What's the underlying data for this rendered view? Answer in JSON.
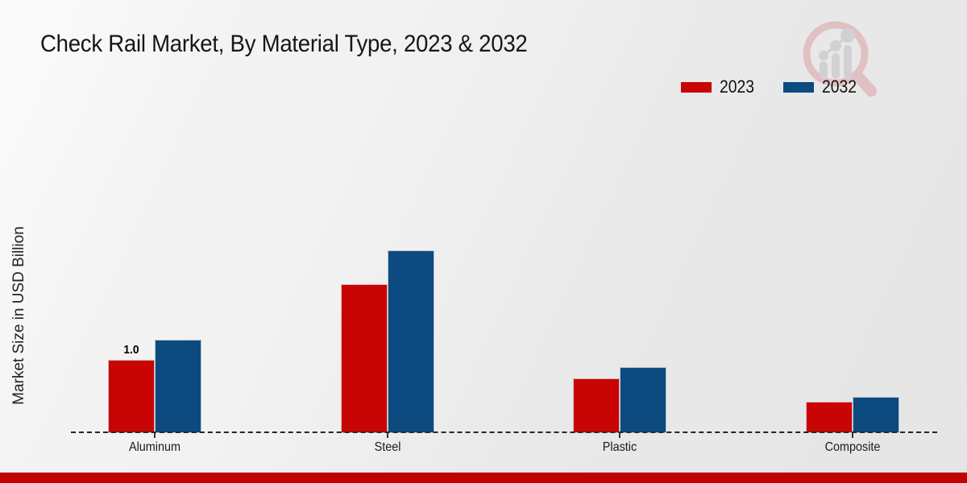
{
  "header": {
    "title": "Check Rail Market, By Material Type, 2023 & 2032"
  },
  "watermark_icon": "magnifier-bar-chart-logo",
  "styles": {
    "background": "#ebebeb",
    "accent_bar_color": "#c00202",
    "bar_2023_color": "#c80404",
    "bar_2032_color": "#0c4a80",
    "baseline_color": "#262626",
    "logo_ring_color": "#dda6ab",
    "logo_bars_color": "#c2c2c2"
  },
  "chart_data": {
    "type": "bar",
    "title": "Check Rail Market, By Material Type, 2023 & 2032",
    "ylabel": "Market Size in USD Billion",
    "xlabel": "",
    "units": "USD Billion",
    "categories": [
      "Aluminum",
      "Steel",
      "Plastic",
      "Composite"
    ],
    "series": [
      {
        "name": "2023",
        "color": "#c80404",
        "values": [
          1.0,
          2.03,
          0.75,
          0.43
        ]
      },
      {
        "name": "2032",
        "color": "#0c4a80",
        "values": [
          1.27,
          2.49,
          0.9,
          0.49
        ]
      }
    ],
    "annotations": [
      {
        "category_index": 0,
        "series_index": 0,
        "text": "1.0"
      }
    ],
    "ylim": [
      0,
      3.1
    ],
    "grid": false,
    "y_axis_ticks_visible": false,
    "axis_style": "dashed-baseline-only",
    "legend_position": "top-right"
  }
}
